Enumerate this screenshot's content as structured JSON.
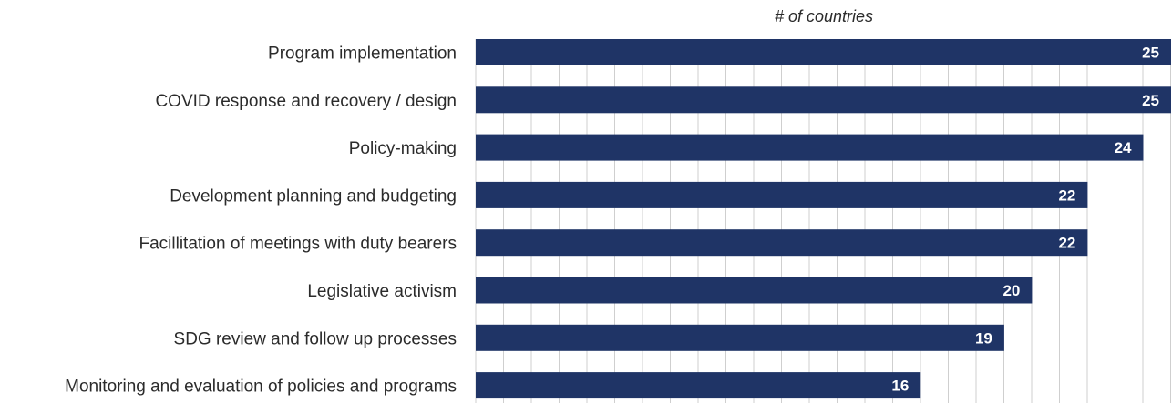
{
  "chart_data": {
    "type": "bar",
    "orientation": "horizontal",
    "xlabel": "# of countries",
    "categories": [
      "Program implementation",
      "COVID response and recovery / design",
      "Policy-making",
      "Development planning and budgeting",
      "Facillitation of meetings with duty bearers",
      "Legislative activism",
      "SDG review and follow up processes",
      "Monitoring and evaluation of policies and programs"
    ],
    "values": [
      25,
      25,
      24,
      22,
      22,
      20,
      19,
      16
    ],
    "xlim": [
      0,
      25
    ],
    "grid": true,
    "bar_color": "#1f3466",
    "label_color": "#ffffff",
    "grid_color": "#cfcfcf"
  }
}
